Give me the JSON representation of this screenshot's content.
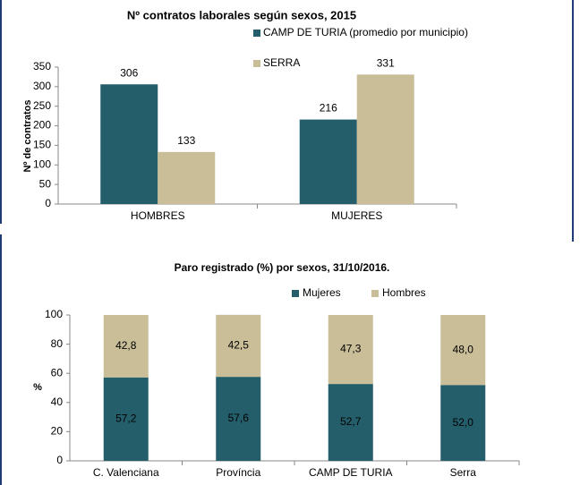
{
  "chart_data": [
    {
      "type": "bar",
      "title": "Nº contratos laborales según sexos, 2015",
      "y_label": "Nº de contratos",
      "categories": [
        "HOMBRES",
        "MUJERES"
      ],
      "series": [
        {
          "name": "CAMP DE TURIA (promedio por municipio)",
          "color": "#255e6b",
          "values": [
            306,
            216
          ]
        },
        {
          "name": "SERRA",
          "color": "#c9be98",
          "values": [
            133,
            331
          ]
        }
      ],
      "ylim": [
        0,
        350
      ],
      "yticks": [
        0,
        50,
        100,
        150,
        200,
        250,
        300,
        350
      ],
      "grid": false,
      "legend": "top-right"
    },
    {
      "type": "stacked_bar",
      "title": "Paro registrado (%) por sexos, 31/10/2016.",
      "y_label": "%",
      "categories": [
        "C. Valenciana",
        "Província",
        "CAMP DE TURIA",
        "Serra"
      ],
      "series": [
        {
          "name": "Mujeres",
          "color": "#255e6b",
          "values": [
            57.2,
            57.6,
            52.7,
            52.0
          ],
          "value_labels": [
            "57,2",
            "57,6",
            "52,7",
            "52,0"
          ]
        },
        {
          "name": "Hombres",
          "color": "#c9be98",
          "values": [
            42.8,
            42.5,
            47.3,
            48.0
          ],
          "value_labels": [
            "42,8",
            "42,5",
            "47,3",
            "48,0"
          ]
        }
      ],
      "ylim": [
        0,
        100
      ],
      "yticks": [
        0,
        20,
        40,
        60,
        80,
        100
      ],
      "grid": false,
      "legend": "top"
    }
  ]
}
